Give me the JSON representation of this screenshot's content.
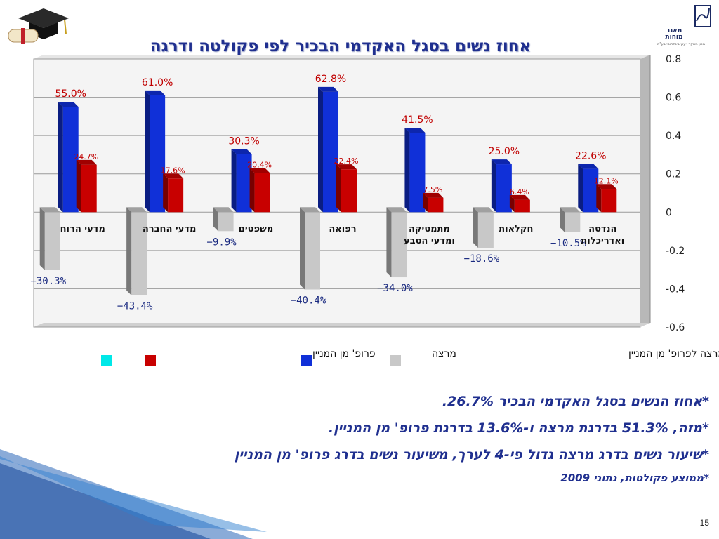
{
  "slide": {
    "title": "אחוז נשים בסגל האקדמי הבכיר לפי פקולטה ודרגה",
    "logo_name_line1": "מאגר",
    "logo_name_line2": "מוחות",
    "logo_tagline": "מכון מחקר ויעוץ בינתחומי בע\"מ",
    "page_number": "15",
    "notes": [
      "*אחוז הנשים בסגל האקדמי הבכיר 26.7%.",
      "*מזה, 51.3% בדרגת מרצה ו-13.6% בדרגת פרופ' מן המניין.",
      "*שיעור נשים בדרג מרצה גדול פי-4 לערך, משיעור נשים בדרג פרופ' מן המניין",
      "*ממוצע פקולטות, נתוני 2009"
    ]
  },
  "chart_data": {
    "type": "bar",
    "categories": [
      "מדעי הרוח",
      "מדעי החברה",
      "משפטים",
      "רפואה",
      "מתמטיקה ומדעי הטבע",
      "חקלאות",
      "הנדסה ואדריכלות"
    ],
    "category_lines": [
      [
        "מדעי הרוח"
      ],
      [
        "מדעי החברה"
      ],
      [
        "משפטים"
      ],
      [
        "רפואה"
      ],
      [
        "מתמטיקה",
        "ומדעי הטבע"
      ],
      [
        "חקלאות"
      ],
      [
        "הנדסה",
        "ואדריכלות"
      ]
    ],
    "series": [
      {
        "name": "מרצה",
        "color": "#1030d8",
        "values": [
          0.55,
          0.61,
          0.303,
          0.628,
          0.415,
          0.25,
          0.226
        ],
        "labels": [
          "55.0%",
          "61.0%",
          "30.3%",
          "62.8%",
          "41.5%",
          "25.0%",
          "22.6%"
        ]
      },
      {
        "name": "פרופ' מן המניין",
        "color": "#c80000",
        "values": [
          0.247,
          0.176,
          0.204,
          0.224,
          0.075,
          0.064,
          0.121
        ],
        "labels": [
          "24.7%",
          "17.6%",
          "20.4%",
          "22.4%",
          "7.5%",
          "6.4%",
          "12.1%"
        ]
      },
      {
        "name": "הפער בין מרצה לפרופ' מן המניין",
        "color": "#c8c8c8",
        "values": [
          -0.303,
          -0.434,
          -0.099,
          -0.404,
          -0.34,
          -0.186,
          -0.105
        ],
        "labels": [
          "-30.3%",
          "-43.4%",
          "-9.9%",
          "-40.4%",
          "-34.0%",
          "-18.6%",
          "-10.5%"
        ]
      }
    ],
    "extra_legend_color": "#00e8e8",
    "ylim": [
      -0.6,
      0.8
    ],
    "yticks": [
      0.8,
      0.6,
      0.4,
      0.2,
      0,
      -0.2,
      -0.4,
      -0.6
    ],
    "ytick_labels": [
      "0.8",
      "0.6",
      "0.4",
      "0.2",
      "0",
      "-0.2",
      "-0.4",
      "-0.6"
    ],
    "grid": true,
    "legend_position": "bottom"
  }
}
